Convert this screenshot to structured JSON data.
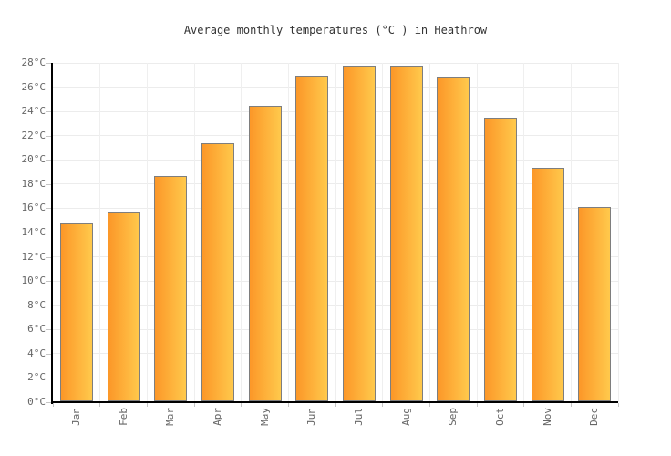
{
  "chart_data": {
    "type": "bar",
    "title": "Average monthly temperatures (°C ) in Heathrow",
    "categories": [
      "Jan",
      "Feb",
      "Mar",
      "Apr",
      "May",
      "Jun",
      "Jul",
      "Aug",
      "Sep",
      "Oct",
      "Nov",
      "Dec"
    ],
    "values": [
      14.7,
      15.6,
      18.6,
      21.3,
      24.4,
      26.9,
      27.7,
      27.7,
      26.8,
      23.4,
      19.3,
      16.0
    ],
    "unit": "°C",
    "xlabel": "",
    "ylabel": "",
    "ylim": [
      0,
      28
    ],
    "ytick_step": 2,
    "ytick_labels": [
      "0°C",
      "2°C",
      "4°C",
      "6°C",
      "8°C",
      "10°C",
      "12°C",
      "14°C",
      "16°C",
      "18°C",
      "20°C",
      "22°C",
      "24°C",
      "26°C",
      "28°C"
    ],
    "grid": true,
    "legend": "none",
    "colors": {
      "bar_gradient_left": "#fc9728",
      "bar_gradient_right": "#ffc94c",
      "bar_border": "#7e7e7e",
      "axis": "#000000",
      "gridline": "#ececec",
      "tick": "#c6c6c6",
      "axis_label": "#666666",
      "title": "#333333",
      "background": "#ffffff"
    }
  }
}
